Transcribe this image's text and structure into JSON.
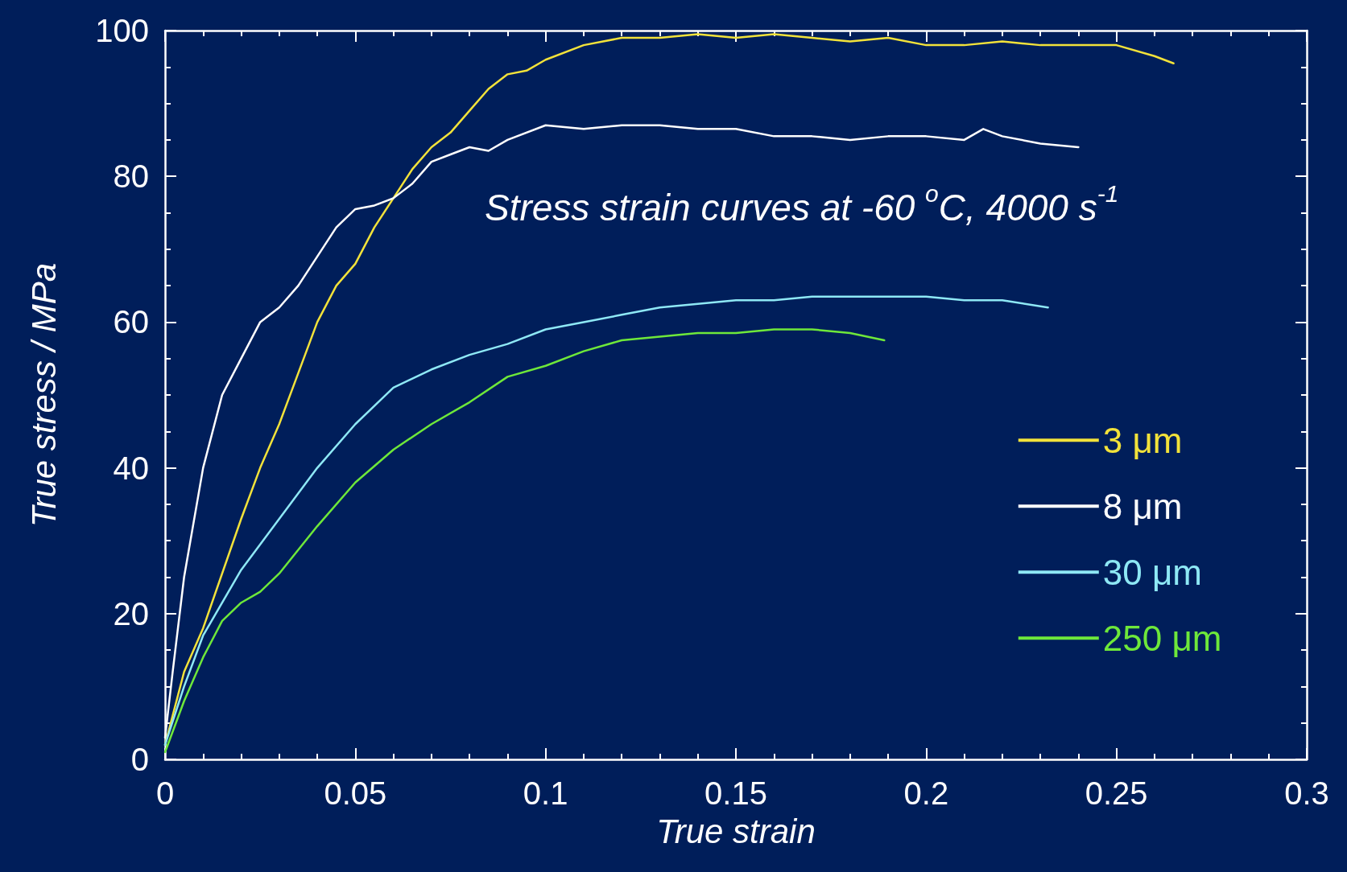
{
  "chart_data": {
    "type": "line",
    "xlabel": "True strain",
    "ylabel": "True stress / MPa",
    "annotations": [
      "Stress strain curves at -60 $^{o}$C, 4000 s$^{-1}$"
    ],
    "xlim": [
      0,
      0.3
    ],
    "xticks": [
      0,
      0.05,
      0.1,
      0.15,
      0.2,
      0.25,
      0.3
    ],
    "ylim": [
      0,
      100
    ],
    "yticks": [
      0,
      20,
      40,
      60,
      80,
      100
    ],
    "grid": false,
    "legend": "bottom right",
    "marker": "none",
    "line_style": "solid",
    "series": [
      {
        "name": "3 μm",
        "color": "#f2e23a",
        "x": [
          0,
          0.005,
          0.01,
          0.02,
          0.025,
          0.03,
          0.035,
          0.04,
          0.045,
          0.05,
          0.055,
          0.06,
          0.065,
          0.07,
          0.075,
          0.08,
          0.085,
          0.09,
          0.095,
          0.1,
          0.11,
          0.12,
          0.13,
          0.14,
          0.15,
          0.16,
          0.17,
          0.18,
          0.19,
          0.2,
          0.21,
          0.22,
          0.23,
          0.24,
          0.25,
          0.26,
          0.265
        ],
        "values": [
          2,
          12,
          18,
          33,
          40,
          46,
          53,
          60,
          65,
          68,
          73,
          77,
          81,
          84,
          86,
          89,
          92,
          94,
          94.5,
          96,
          98,
          99,
          99,
          99.5,
          99,
          99.5,
          99,
          98.5,
          99,
          98,
          98,
          98.5,
          98,
          98,
          98,
          96.5,
          95.5
        ]
      },
      {
        "name": "8 μm",
        "color": "#ffffff",
        "x": [
          0,
          0.002,
          0.005,
          0.01,
          0.015,
          0.02,
          0.025,
          0.03,
          0.035,
          0.04,
          0.045,
          0.05,
          0.055,
          0.06,
          0.065,
          0.07,
          0.075,
          0.08,
          0.085,
          0.09,
          0.1,
          0.11,
          0.12,
          0.13,
          0.14,
          0.15,
          0.16,
          0.17,
          0.18,
          0.19,
          0.2,
          0.21,
          0.215,
          0.22,
          0.23,
          0.24
        ],
        "values": [
          3,
          12,
          25,
          40,
          50,
          55,
          60,
          62,
          65,
          69,
          73,
          75.5,
          76,
          77,
          79,
          82,
          83,
          84,
          83.5,
          85,
          87,
          86.5,
          87,
          87,
          86.5,
          86.5,
          85.5,
          85.5,
          85,
          85.5,
          85.5,
          85,
          86.5,
          85.5,
          84.5,
          84
        ]
      },
      {
        "name": "30 μm",
        "color": "#8ee8f5",
        "x": [
          0,
          0.005,
          0.01,
          0.02,
          0.03,
          0.04,
          0.05,
          0.06,
          0.07,
          0.08,
          0.09,
          0.1,
          0.11,
          0.12,
          0.13,
          0.14,
          0.15,
          0.16,
          0.17,
          0.18,
          0.19,
          0.2,
          0.21,
          0.22,
          0.232
        ],
        "values": [
          2,
          10,
          17,
          26,
          33,
          40,
          46,
          51,
          53.5,
          55.5,
          57,
          59,
          60,
          61,
          62,
          62.5,
          63,
          63,
          63.5,
          63.5,
          63.5,
          63.5,
          63,
          63,
          62
        ]
      },
      {
        "name": "250 μm",
        "color": "#6ee83a",
        "x": [
          0,
          0.005,
          0.01,
          0.015,
          0.02,
          0.025,
          0.03,
          0.04,
          0.05,
          0.06,
          0.07,
          0.08,
          0.09,
          0.1,
          0.11,
          0.12,
          0.13,
          0.14,
          0.15,
          0.16,
          0.17,
          0.18,
          0.189
        ],
        "values": [
          1,
          8,
          14,
          19,
          21.5,
          23,
          25.5,
          32,
          38,
          42.5,
          46,
          49,
          52.5,
          54,
          56,
          57.5,
          58,
          58.5,
          58.5,
          59,
          59,
          58.5,
          57.5
        ]
      }
    ]
  }
}
